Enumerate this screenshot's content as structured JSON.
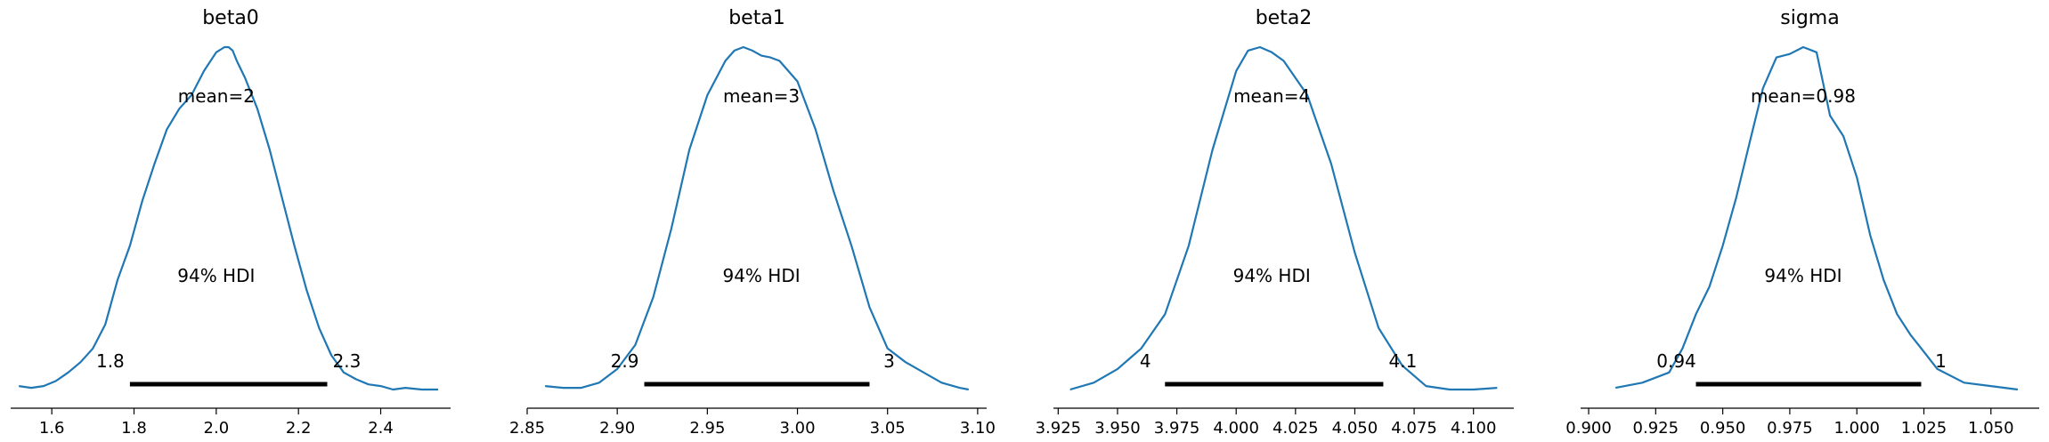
{
  "chart_data": [
    {
      "type": "area",
      "title": "beta0",
      "mean_label": "mean=2",
      "hdi_label": "94% HDI",
      "hdi": [
        1.79,
        2.27
      ],
      "hdi_low_label": "1.8",
      "hdi_high_label": "2.3",
      "xlim": [
        1.5,
        2.57
      ],
      "ticks": [
        1.6,
        1.8,
        2.0,
        2.2,
        2.4
      ],
      "tick_labels": [
        "1.6",
        "1.8",
        "2.0",
        "2.2",
        "2.4"
      ],
      "mean_x": 2.0,
      "density": {
        "x": [
          1.52,
          1.55,
          1.58,
          1.61,
          1.64,
          1.67,
          1.7,
          1.73,
          1.76,
          1.79,
          1.82,
          1.85,
          1.88,
          1.91,
          1.94,
          1.97,
          2.0,
          2.02,
          2.03,
          2.04,
          2.05,
          2.07,
          2.1,
          2.13,
          2.16,
          2.19,
          2.22,
          2.25,
          2.28,
          2.31,
          2.34,
          2.37,
          2.4,
          2.43,
          2.46,
          2.5,
          2.54
        ],
        "y": [
          0.01,
          0.005,
          0.01,
          0.025,
          0.05,
          0.08,
          0.12,
          0.19,
          0.32,
          0.42,
          0.55,
          0.66,
          0.76,
          0.82,
          0.86,
          0.93,
          0.985,
          1.0,
          1.0,
          0.99,
          0.96,
          0.91,
          0.82,
          0.7,
          0.56,
          0.42,
          0.29,
          0.18,
          0.1,
          0.05,
          0.03,
          0.015,
          0.01,
          0.0,
          0.005,
          0.0,
          0.0
        ]
      }
    },
    {
      "type": "area",
      "title": "beta1",
      "mean_label": "mean=3",
      "hdi_label": "94% HDI",
      "hdi": [
        2.915,
        3.04
      ],
      "hdi_low_label": "2.9",
      "hdi_high_label": "3",
      "xlim": [
        2.85,
        3.105
      ],
      "ticks": [
        2.85,
        2.9,
        2.95,
        3.0,
        3.05,
        3.1
      ],
      "tick_labels": [
        "2.85",
        "2.90",
        "2.95",
        "3.00",
        "3.05",
        "3.10"
      ],
      "mean_x": 2.98,
      "density": {
        "x": [
          2.86,
          2.87,
          2.88,
          2.89,
          2.9,
          2.91,
          2.92,
          2.93,
          2.94,
          2.95,
          2.96,
          2.965,
          2.97,
          2.975,
          2.98,
          2.985,
          2.99,
          3.0,
          3.01,
          3.02,
          3.03,
          3.04,
          3.05,
          3.06,
          3.07,
          3.08,
          3.09,
          3.095
        ],
        "y": [
          0.01,
          0.005,
          0.005,
          0.02,
          0.06,
          0.13,
          0.27,
          0.47,
          0.7,
          0.86,
          0.96,
          0.99,
          1.0,
          0.99,
          0.975,
          0.97,
          0.96,
          0.9,
          0.76,
          0.58,
          0.42,
          0.24,
          0.12,
          0.08,
          0.05,
          0.02,
          0.005,
          0.0
        ]
      }
    },
    {
      "type": "area",
      "title": "beta2",
      "mean_label": "mean=4",
      "hdi_label": "94% HDI",
      "hdi": [
        3.97,
        4.062
      ],
      "hdi_low_label": "4",
      "hdi_high_label": "4.1",
      "xlim": [
        3.923,
        4.117
      ],
      "ticks": [
        3.925,
        3.95,
        3.975,
        4.0,
        4.025,
        4.05,
        4.075,
        4.1
      ],
      "tick_labels": [
        "3.925",
        "3.950",
        "3.975",
        "4.000",
        "4.025",
        "4.050",
        "4.075",
        "4.100"
      ],
      "mean_x": 4.015,
      "density": {
        "x": [
          3.93,
          3.94,
          3.95,
          3.96,
          3.97,
          3.98,
          3.99,
          4.0,
          4.005,
          4.01,
          4.015,
          4.02,
          4.03,
          4.04,
          4.05,
          4.06,
          4.07,
          4.08,
          4.09,
          4.1,
          4.11
        ],
        "y": [
          0.0,
          0.02,
          0.06,
          0.12,
          0.22,
          0.42,
          0.7,
          0.93,
          0.99,
          1.0,
          0.985,
          0.96,
          0.86,
          0.66,
          0.4,
          0.18,
          0.07,
          0.01,
          0.0,
          0.0,
          0.005
        ]
      }
    },
    {
      "type": "area",
      "title": "sigma",
      "mean_label": "mean=0.98",
      "hdi_label": "94% HDI",
      "hdi": [
        0.94,
        1.024
      ],
      "hdi_low_label": "0.94",
      "hdi_high_label": "1",
      "xlim": [
        0.897,
        1.068
      ],
      "ticks": [
        0.9,
        0.925,
        0.95,
        0.975,
        1.0,
        1.025,
        1.05
      ],
      "tick_labels": [
        "0.900",
        "0.925",
        "0.950",
        "0.975",
        "1.000",
        "1.025",
        "1.050"
      ],
      "mean_x": 0.98,
      "density": {
        "x": [
          0.91,
          0.92,
          0.93,
          0.935,
          0.94,
          0.945,
          0.95,
          0.955,
          0.96,
          0.965,
          0.97,
          0.975,
          0.98,
          0.985,
          0.99,
          0.995,
          1.0,
          1.005,
          1.01,
          1.015,
          1.02,
          1.025,
          1.03,
          1.04,
          1.05,
          1.06
        ],
        "y": [
          0.005,
          0.02,
          0.05,
          0.12,
          0.22,
          0.3,
          0.42,
          0.56,
          0.72,
          0.88,
          0.97,
          0.98,
          1.0,
          0.985,
          0.8,
          0.74,
          0.62,
          0.45,
          0.32,
          0.22,
          0.16,
          0.11,
          0.06,
          0.02,
          0.01,
          0.0
        ]
      }
    }
  ]
}
